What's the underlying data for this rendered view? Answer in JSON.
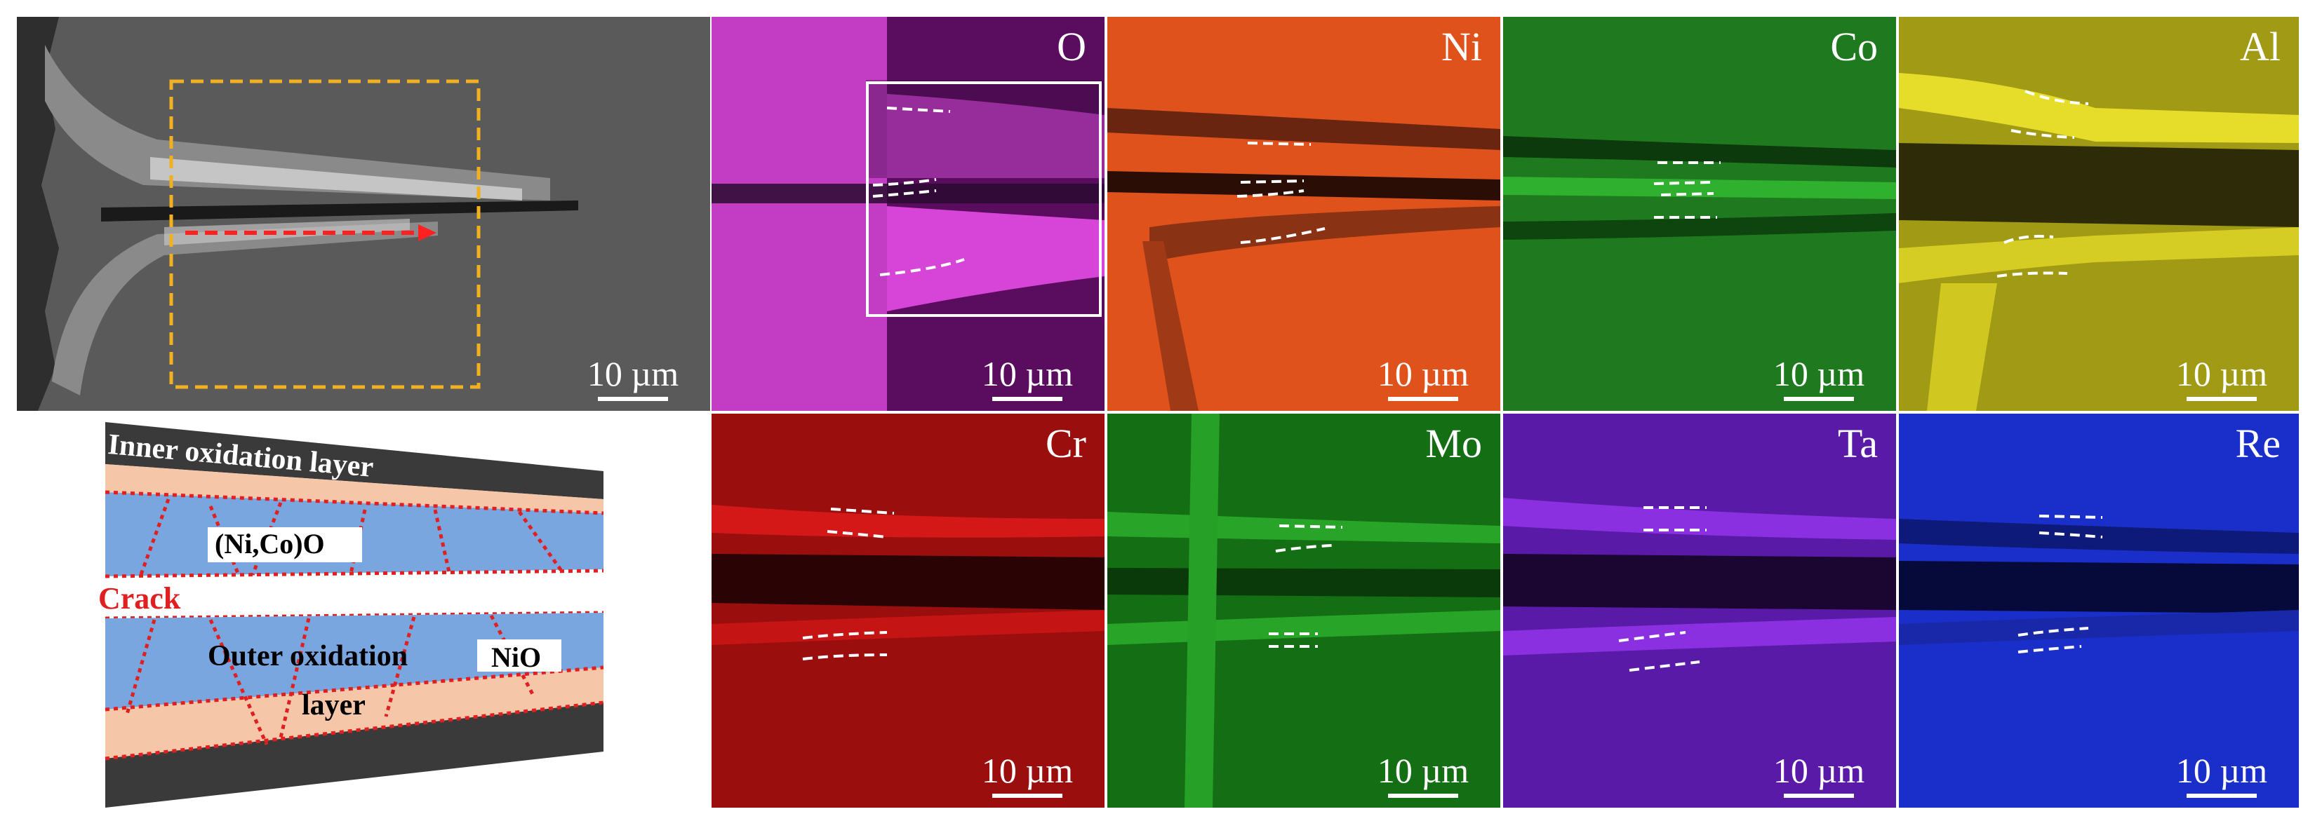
{
  "sem": {
    "scale_bar": "10 µm"
  },
  "maps": [
    {
      "element": "O",
      "scale_bar": "10 µm",
      "color": "#d93ad9"
    },
    {
      "element": "Ni",
      "scale_bar": "10 µm",
      "color": "#e0521c"
    },
    {
      "element": "Co",
      "scale_bar": "10 µm",
      "color": "#1f9a1f"
    },
    {
      "element": "Al",
      "scale_bar": "10 µm",
      "color": "#c9c21a"
    },
    {
      "element": "Cr",
      "scale_bar": "10 µm",
      "color": "#b51010"
    },
    {
      "element": "Mo",
      "scale_bar": "10 µm",
      "color": "#1f8f1f"
    },
    {
      "element": "Ta",
      "scale_bar": "10 µm",
      "color": "#6b1fc7"
    },
    {
      "element": "Re",
      "scale_bar": "10 µm",
      "color": "#1a2fc9"
    }
  ],
  "schematic": {
    "inner_layer": "Inner oxidation layer",
    "nico_oxide": "(Ni,Co)O",
    "crack": "Crack",
    "outer_layer_line1": "Outer oxidation",
    "outer_layer_line2": "layer",
    "nio": "NiO"
  }
}
